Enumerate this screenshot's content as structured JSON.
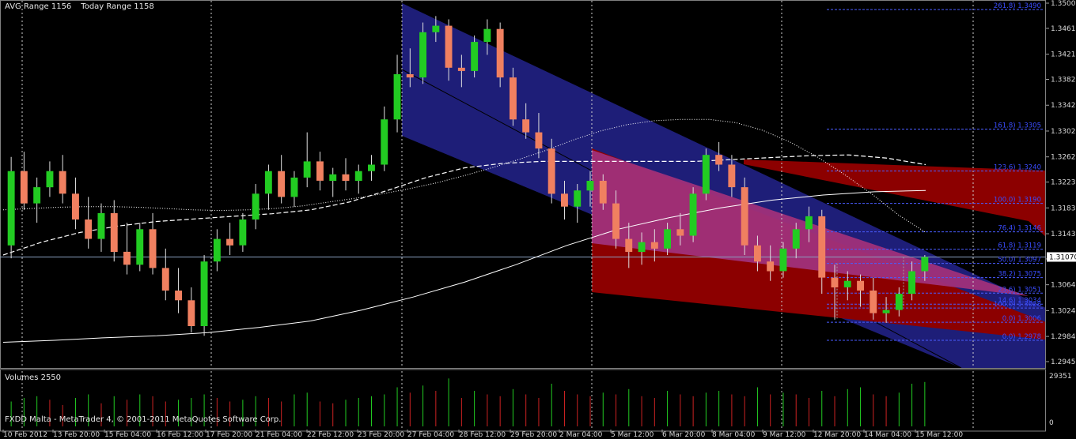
{
  "header": {
    "avg_range": "AVG Range 1156",
    "today_range": "Today Range 1158"
  },
  "volume_panel": {
    "title": "Volumes 2550",
    "scale_top": "29351",
    "scale_bottom": "0"
  },
  "footer": "FXDD Malta - MetaTrader 4, © 2001-2011 MetaQuotes Software Corp.",
  "chart_data": {
    "type": "candlestick",
    "symbol": "EURUSD",
    "ylim": [
      1.2945,
      1.35
    ],
    "price_axis_ticks": [
      "1.35000",
      "1.34610",
      "1.34210",
      "1.33820",
      "1.33420",
      "1.33020",
      "1.32620",
      "1.32230",
      "1.31830",
      "1.31430",
      "1.31040",
      "1.30640",
      "1.30240",
      "1.29840",
      "1.29450"
    ],
    "current_price": "1.31070",
    "x_tick_labels": [
      "10 Feb 2012",
      "13 Feb 20:00",
      "15 Feb 04:00",
      "16 Feb 12:00",
      "17 Feb 20:00",
      "21 Feb 04:00",
      "22 Feb 12:00",
      "23 Feb 20:00",
      "27 Feb 04:00",
      "28 Feb 12:00",
      "29 Feb 20:00",
      "2 Mar 04:00",
      "5 Mar 12:00",
      "6 Mar 20:00",
      "8 Mar 04:00",
      "9 Mar 12:00",
      "12 Mar 20:00",
      "14 Mar 04:00",
      "15 Mar 12:00"
    ],
    "fibonacci_levels": [
      "261.8) 1.3490",
      "161.8) 1.3305",
      "123.6) 1.3240",
      "100.0) 1.3190",
      "76.4) 1.3146",
      "61.8) 1.3119",
      "50.0) 1.3097",
      "38.2) 1.3075",
      "23.6) 1.3051",
      "14.6) 1.3034",
      "0.0) 1.3006",
      "100.0) 1.3028",
      "0.0) 1.2978"
    ],
    "colors": {
      "bull": "#22cc22",
      "bear": "#f08060",
      "regression_channel_1": "#1e1e78",
      "regression_channel_2": "#a0307a",
      "regression_channel_3": "#8c0000",
      "fib_line": "#4a5cff",
      "fib_text": "#3a4cff",
      "ma_line": "#ffffff"
    },
    "candles": [
      {
        "o": 1.3125,
        "h": 1.3262,
        "l": 1.3105,
        "c": 1.324
      },
      {
        "o": 1.324,
        "h": 1.327,
        "l": 1.318,
        "c": 1.319
      },
      {
        "o": 1.319,
        "h": 1.323,
        "l": 1.316,
        "c": 1.3215
      },
      {
        "o": 1.3215,
        "h": 1.3255,
        "l": 1.32,
        "c": 1.324
      },
      {
        "o": 1.324,
        "h": 1.3265,
        "l": 1.319,
        "c": 1.3205
      },
      {
        "o": 1.3205,
        "h": 1.323,
        "l": 1.315,
        "c": 1.3165
      },
      {
        "o": 1.3165,
        "h": 1.32,
        "l": 1.312,
        "c": 1.3135
      },
      {
        "o": 1.3135,
        "h": 1.319,
        "l": 1.3115,
        "c": 1.3175
      },
      {
        "o": 1.3175,
        "h": 1.3195,
        "l": 1.31,
        "c": 1.3115
      },
      {
        "o": 1.3115,
        "h": 1.316,
        "l": 1.308,
        "c": 1.3095
      },
      {
        "o": 1.3095,
        "h": 1.316,
        "l": 1.3085,
        "c": 1.315
      },
      {
        "o": 1.315,
        "h": 1.3175,
        "l": 1.308,
        "c": 1.309
      },
      {
        "o": 1.309,
        "h": 1.312,
        "l": 1.304,
        "c": 1.3055
      },
      {
        "o": 1.3055,
        "h": 1.309,
        "l": 1.302,
        "c": 1.304
      },
      {
        "o": 1.304,
        "h": 1.306,
        "l": 1.299,
        "c": 1.3
      },
      {
        "o": 1.3,
        "h": 1.311,
        "l": 1.2985,
        "c": 1.31
      },
      {
        "o": 1.31,
        "h": 1.315,
        "l": 1.3085,
        "c": 1.3135
      },
      {
        "o": 1.3135,
        "h": 1.316,
        "l": 1.311,
        "c": 1.3125
      },
      {
        "o": 1.3125,
        "h": 1.3175,
        "l": 1.3115,
        "c": 1.3165
      },
      {
        "o": 1.3165,
        "h": 1.322,
        "l": 1.315,
        "c": 1.3205
      },
      {
        "o": 1.3205,
        "h": 1.325,
        "l": 1.318,
        "c": 1.324
      },
      {
        "o": 1.324,
        "h": 1.3265,
        "l": 1.319,
        "c": 1.32
      },
      {
        "o": 1.32,
        "h": 1.324,
        "l": 1.3185,
        "c": 1.323
      },
      {
        "o": 1.323,
        "h": 1.33,
        "l": 1.3215,
        "c": 1.3255
      },
      {
        "o": 1.3255,
        "h": 1.327,
        "l": 1.321,
        "c": 1.3225
      },
      {
        "o": 1.3225,
        "h": 1.3245,
        "l": 1.32,
        "c": 1.3235
      },
      {
        "o": 1.3235,
        "h": 1.326,
        "l": 1.321,
        "c": 1.3225
      },
      {
        "o": 1.3225,
        "h": 1.325,
        "l": 1.3205,
        "c": 1.324
      },
      {
        "o": 1.324,
        "h": 1.3265,
        "l": 1.3225,
        "c": 1.325
      },
      {
        "o": 1.325,
        "h": 1.334,
        "l": 1.324,
        "c": 1.332
      },
      {
        "o": 1.332,
        "h": 1.342,
        "l": 1.33,
        "c": 1.339
      },
      {
        "o": 1.339,
        "h": 1.343,
        "l": 1.337,
        "c": 1.3385
      },
      {
        "o": 1.3385,
        "h": 1.347,
        "l": 1.3375,
        "c": 1.3455
      },
      {
        "o": 1.3455,
        "h": 1.348,
        "l": 1.344,
        "c": 1.3465
      },
      {
        "o": 1.3465,
        "h": 1.3475,
        "l": 1.338,
        "c": 1.34
      },
      {
        "o": 1.34,
        "h": 1.342,
        "l": 1.337,
        "c": 1.3395
      },
      {
        "o": 1.3395,
        "h": 1.345,
        "l": 1.3385,
        "c": 1.344
      },
      {
        "o": 1.344,
        "h": 1.3475,
        "l": 1.342,
        "c": 1.346
      },
      {
        "o": 1.346,
        "h": 1.347,
        "l": 1.337,
        "c": 1.3385
      },
      {
        "o": 1.3385,
        "h": 1.34,
        "l": 1.331,
        "c": 1.332
      },
      {
        "o": 1.332,
        "h": 1.3345,
        "l": 1.329,
        "c": 1.33
      },
      {
        "o": 1.33,
        "h": 1.333,
        "l": 1.326,
        "c": 1.3275
      },
      {
        "o": 1.3275,
        "h": 1.329,
        "l": 1.319,
        "c": 1.3205
      },
      {
        "o": 1.3205,
        "h": 1.3225,
        "l": 1.3165,
        "c": 1.3185
      },
      {
        "o": 1.3185,
        "h": 1.322,
        "l": 1.316,
        "c": 1.321
      },
      {
        "o": 1.321,
        "h": 1.324,
        "l": 1.3185,
        "c": 1.3225
      },
      {
        "o": 1.3225,
        "h": 1.3235,
        "l": 1.318,
        "c": 1.319
      },
      {
        "o": 1.319,
        "h": 1.321,
        "l": 1.312,
        "c": 1.3135
      },
      {
        "o": 1.3135,
        "h": 1.316,
        "l": 1.309,
        "c": 1.3115
      },
      {
        "o": 1.3115,
        "h": 1.3145,
        "l": 1.3095,
        "c": 1.313
      },
      {
        "o": 1.313,
        "h": 1.315,
        "l": 1.31,
        "c": 1.312
      },
      {
        "o": 1.312,
        "h": 1.316,
        "l": 1.311,
        "c": 1.315
      },
      {
        "o": 1.315,
        "h": 1.3175,
        "l": 1.3125,
        "c": 1.314
      },
      {
        "o": 1.314,
        "h": 1.3215,
        "l": 1.313,
        "c": 1.3205
      },
      {
        "o": 1.3205,
        "h": 1.3275,
        "l": 1.3195,
        "c": 1.3265
      },
      {
        "o": 1.3265,
        "h": 1.3285,
        "l": 1.324,
        "c": 1.325
      },
      {
        "o": 1.325,
        "h": 1.3265,
        "l": 1.32,
        "c": 1.3215
      },
      {
        "o": 1.3215,
        "h": 1.323,
        "l": 1.311,
        "c": 1.3125
      },
      {
        "o": 1.3125,
        "h": 1.314,
        "l": 1.3085,
        "c": 1.31
      },
      {
        "o": 1.31,
        "h": 1.3125,
        "l": 1.307,
        "c": 1.3085
      },
      {
        "o": 1.3085,
        "h": 1.313,
        "l": 1.3075,
        "c": 1.312
      },
      {
        "o": 1.312,
        "h": 1.316,
        "l": 1.3105,
        "c": 1.315
      },
      {
        "o": 1.315,
        "h": 1.3185,
        "l": 1.313,
        "c": 1.317
      },
      {
        "o": 1.317,
        "h": 1.318,
        "l": 1.305,
        "c": 1.3075
      },
      {
        "o": 1.3075,
        "h": 1.3095,
        "l": 1.301,
        "c": 1.306
      },
      {
        "o": 1.306,
        "h": 1.3085,
        "l": 1.304,
        "c": 1.307
      },
      {
        "o": 1.307,
        "h": 1.308,
        "l": 1.303,
        "c": 1.3055
      },
      {
        "o": 1.3055,
        "h": 1.3075,
        "l": 1.301,
        "c": 1.302
      },
      {
        "o": 1.302,
        "h": 1.3045,
        "l": 1.3005,
        "c": 1.3025
      },
      {
        "o": 1.3025,
        "h": 1.306,
        "l": 1.3015,
        "c": 1.305
      },
      {
        "o": 1.305,
        "h": 1.31,
        "l": 1.304,
        "c": 1.3085
      },
      {
        "o": 1.3085,
        "h": 1.311,
        "l": 1.307,
        "c": 1.3107
      }
    ],
    "volumes": [
      14000,
      16000,
      17000,
      15000,
      12000,
      16000,
      18000,
      13000,
      17000,
      15000,
      18000,
      17000,
      14000,
      15000,
      16000,
      18000,
      16000,
      14000,
      15000,
      17000,
      16000,
      14000,
      18000,
      19000,
      14000,
      13000,
      15000,
      16000,
      17000,
      18000,
      22000,
      19000,
      23000,
      20000,
      27000,
      16000,
      20000,
      18000,
      17000,
      21000,
      18000,
      16000,
      24000,
      20000,
      18000,
      17000,
      19000,
      18000,
      21000,
      17000,
      16000,
      20000,
      18000,
      17000,
      19000,
      20000,
      18000,
      17000,
      22000,
      18000,
      19000,
      18000,
      16000,
      20000,
      17000,
      21000,
      22000,
      18000,
      17000,
      19000,
      24000,
      25000
    ],
    "moving_averages": [
      {
        "name": "MA dotted",
        "style": "dotted",
        "values": [
          1.318,
          1.3182,
          1.3184,
          1.3185,
          1.3185,
          1.3184,
          1.3182,
          1.318,
          1.3179,
          1.318,
          1.3182,
          1.3186,
          1.3192,
          1.3198,
          1.3205,
          1.3213,
          1.3222,
          1.3233,
          1.3245,
          1.3258,
          1.3272,
          1.3288,
          1.3302,
          1.3312,
          1.3318,
          1.332,
          1.332,
          1.3315,
          1.3303,
          1.3285,
          1.3262,
          1.3235,
          1.3205,
          1.3172,
          1.3145
        ]
      },
      {
        "name": "MA dashed",
        "style": "dashed",
        "values": [
          1.311,
          1.313,
          1.3145,
          1.3155,
          1.3162,
          1.3166,
          1.317,
          1.3174,
          1.318,
          1.3192,
          1.321,
          1.323,
          1.3245,
          1.3252,
          1.3255,
          1.3255,
          1.3255,
          1.3255,
          1.3255,
          1.3258,
          1.3261,
          1.3264,
          1.3265,
          1.326,
          1.325
        ]
      },
      {
        "name": "MA solid",
        "style": "solid",
        "values": [
          1.2975,
          1.2978,
          1.2982,
          1.2985,
          1.299,
          1.2998,
          1.3008,
          1.3025,
          1.3045,
          1.3068,
          1.3095,
          1.3125,
          1.315,
          1.3168,
          1.3183,
          1.3195,
          1.3203,
          1.3208,
          1.321
        ]
      }
    ]
  }
}
